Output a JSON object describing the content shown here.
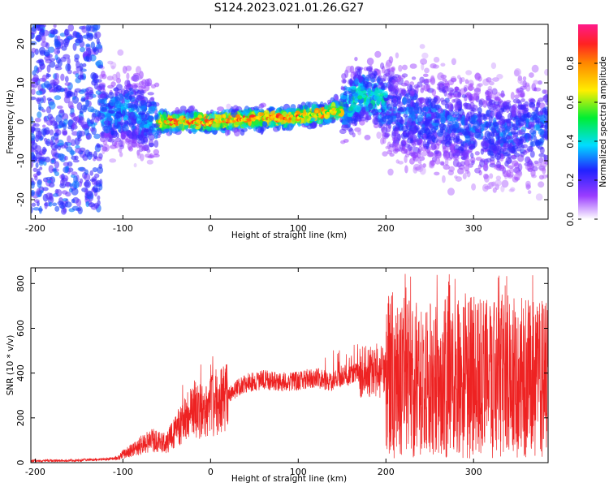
{
  "title": "S124.2023.021.01.26.G27",
  "colors": {
    "axis": "#000000",
    "snr_line": "#ee2222"
  },
  "chart_data": [
    {
      "type": "heatmap",
      "xlabel": "Height of straight line (km)",
      "ylabel": "Frequency (Hz)",
      "xlim": [
        -205,
        385
      ],
      "ylim": [
        -25,
        25
      ],
      "xticks": [
        -200,
        -100,
        0,
        100,
        200,
        300
      ],
      "yticks": [
        -20,
        -10,
        0,
        10,
        20
      ],
      "colorbar": {
        "label": "Normalized spectral amplitude",
        "range": [
          0,
          1
        ],
        "ticks": [
          "0.0",
          "0.2",
          "0.4",
          "0.6",
          "0.8"
        ],
        "colormap": "rainbow (white → violet → blue → cyan → green → yellow → orange → red → magenta)"
      },
      "frequency_track": {
        "x": [
          -115,
          -90,
          -70,
          -60,
          -40,
          -20,
          0,
          30,
          60,
          90,
          120,
          150,
          170,
          190,
          210,
          240,
          270,
          300,
          330,
          360,
          385
        ],
        "y": [
          2,
          3,
          0,
          0,
          0,
          0,
          0,
          0.5,
          1,
          1,
          2,
          3,
          7,
          6,
          3,
          1,
          0,
          -2,
          -3,
          -2,
          -1
        ]
      }
    },
    {
      "type": "line",
      "xlabel": "Height of straight line (km)",
      "ylabel": "SNR (10 * v/v)",
      "xlim": [
        -205,
        385
      ],
      "ylim": [
        0,
        870
      ],
      "xticks": [
        -200,
        -100,
        0,
        100,
        200,
        300
      ],
      "yticks": [
        0,
        200,
        400,
        600,
        800
      ],
      "envelope": {
        "x": [
          -205,
          -150,
          -110,
          -90,
          -70,
          -50,
          -40,
          -30,
          -20,
          -10,
          0,
          10,
          20,
          30,
          40,
          60,
          80,
          100,
          120,
          140,
          150,
          160,
          170,
          180,
          190,
          200,
          220,
          240,
          260,
          280,
          300,
          320,
          340,
          360,
          385
        ],
        "y": [
          8,
          10,
          18,
          55,
          100,
          90,
          140,
          190,
          240,
          230,
          250,
          270,
          300,
          330,
          355,
          370,
          360,
          365,
          380,
          360,
          390,
          390,
          400,
          400,
          410,
          390,
          380,
          370,
          380,
          370,
          380,
          370,
          380,
          380,
          370
        ]
      }
    }
  ]
}
